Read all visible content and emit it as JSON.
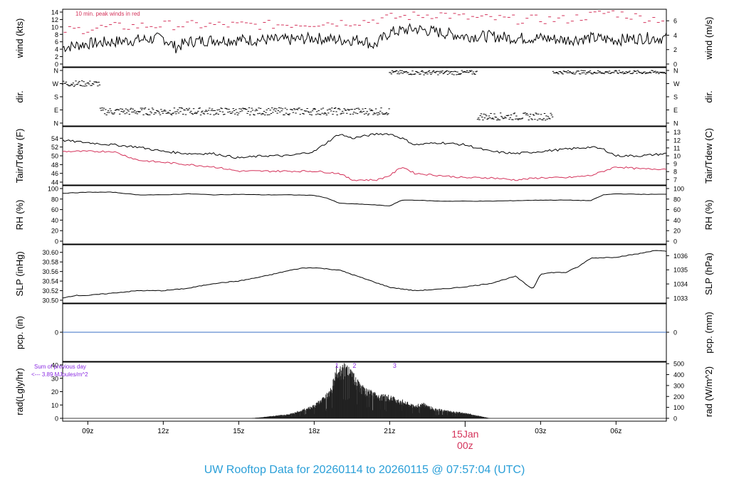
{
  "footer": {
    "title": "UW Rooftop Data for 20260114  to  20260115 @ 07:57:04  (UTC)"
  },
  "colors": {
    "black": "#000000",
    "red": "#d4325a",
    "blue": "#3a6fc4",
    "purple": "#8a2be2",
    "title_blue": "#2a9fd8"
  },
  "x_axis": {
    "ticks": [
      {
        "label": "09z",
        "hour": 9
      },
      {
        "label": "12z",
        "hour": 12
      },
      {
        "label": "15z",
        "hour": 15
      },
      {
        "label": "18z",
        "hour": 18
      },
      {
        "label": "21z",
        "hour": 21
      },
      {
        "label": "03z",
        "hour": 27
      },
      {
        "label": "06z",
        "hour": 30
      }
    ],
    "date_label": "15Jan",
    "date_hour_label": "00z",
    "date_hour": 24,
    "range": [
      8.0,
      32.0
    ]
  },
  "chart_data": [
    {
      "type": "line",
      "panel": "wind",
      "ylabel": "wind (kts)",
      "ylabel_right": "wind (m/s)",
      "ylim": [
        0,
        14
      ],
      "yticks": [
        0,
        2,
        4,
        6,
        8,
        10,
        12,
        14
      ],
      "yticks_right": [
        0,
        2,
        4,
        6
      ],
      "annotation": "10 min. peak winds in red",
      "series": [
        {
          "values_hour": [
            8.0,
            9.0,
            10.0,
            11.0,
            12.0,
            12.5,
            13.0,
            14.0,
            15.0,
            16.0,
            17.0,
            18.0,
            19.0,
            20.0,
            20.2,
            20.4,
            21.0,
            22.0,
            23.0,
            24.0,
            25.0,
            26.0,
            27.0,
            28.0,
            29.0,
            30.0,
            31.0,
            32.0
          ],
          "values": [
            4.5,
            5.5,
            6.0,
            6.5,
            7.0,
            4.5,
            6.0,
            6.5,
            6.5,
            6.5,
            6.5,
            7.0,
            6.5,
            6.5,
            5.5,
            5.0,
            8.5,
            9.5,
            8.5,
            7.5,
            7.5,
            7.0,
            7.0,
            6.5,
            7.0,
            6.5,
            7.0,
            7.0
          ]
        }
      ],
      "peaks": {
        "values_hour": [
          8.0,
          10.0,
          12.0,
          14.0,
          16.0,
          18.0,
          20.0,
          21.0,
          22.0,
          23.0,
          24.0,
          26.0,
          28.0,
          29.8,
          31.0,
          32.0
        ],
        "values": [
          9.0,
          10.0,
          10.5,
          10.5,
          10.5,
          11.0,
          11.5,
          12.5,
          13.0,
          13.5,
          12.5,
          12.0,
          12.0,
          14.0,
          12.5,
          12.0
        ]
      }
    },
    {
      "type": "scatter",
      "panel": "dir",
      "ylabel": "dir.",
      "ylabel_right": "dir.",
      "yticks": [
        "N",
        "W",
        "S",
        "E",
        "N"
      ],
      "bands": [
        {
          "hour_range": [
            8.0,
            9.5
          ],
          "values": [
            250,
            290
          ]
        },
        {
          "hour_range": [
            9.5,
            21.0
          ],
          "values": [
            55,
            105
          ]
        },
        {
          "hour_range": [
            21.0,
            24.5
          ],
          "values": [
            330,
            360
          ]
        },
        {
          "hour_range": [
            24.5,
            27.5
          ],
          "values": [
            20,
            70
          ]
        },
        {
          "hour_range": [
            27.5,
            32.0
          ],
          "values": [
            335,
            360
          ]
        }
      ]
    },
    {
      "type": "line",
      "panel": "temp",
      "ylabel": "Tair/Tdew (F)",
      "ylabel_right": "Tair/Tdew (C)",
      "ylim": [
        44,
        56
      ],
      "yticks": [
        44,
        46,
        48,
        50,
        52,
        54
      ],
      "yticks_right": [
        7,
        8,
        9,
        10,
        11,
        12,
        13
      ],
      "series": [
        {
          "values_hour": [
            8.0,
            9.0,
            10.0,
            11.0,
            12.0,
            13.0,
            14.0,
            15.0,
            16.0,
            17.0,
            18.0,
            18.5,
            19.0,
            19.5,
            20.0,
            20.5,
            21.0,
            21.5,
            22.0,
            23.0,
            24.0,
            25.0,
            26.0,
            27.0,
            28.0,
            29.0,
            29.5,
            30.0,
            31.0,
            32.0
          ],
          "values": [
            53.5,
            53.0,
            52.5,
            52.0,
            51.0,
            50.5,
            50.5,
            49.5,
            50.0,
            50.0,
            51.0,
            53.0,
            55.0,
            54.0,
            54.5,
            55.0,
            55.0,
            54.0,
            52.5,
            53.0,
            52.5,
            51.0,
            50.5,
            51.0,
            51.5,
            52.0,
            51.5,
            50.0,
            50.0,
            50.5
          ]
        },
        {
          "values_hour": [
            8.0,
            9.0,
            10.0,
            10.5,
            11.0,
            12.0,
            13.0,
            14.0,
            15.0,
            16.0,
            17.0,
            18.0,
            19.0,
            19.5,
            20.0,
            20.5,
            21.0,
            21.5,
            22.0,
            23.0,
            24.0,
            25.0,
            26.0,
            27.0,
            28.0,
            29.0,
            30.0,
            31.0,
            32.0
          ],
          "values": [
            51.0,
            51.0,
            51.0,
            50.0,
            49.0,
            48.5,
            48.0,
            47.5,
            46.5,
            46.5,
            46.5,
            46.5,
            46.0,
            44.5,
            44.5,
            44.5,
            45.5,
            47.5,
            46.0,
            45.5,
            45.0,
            45.0,
            44.5,
            45.0,
            45.0,
            45.5,
            47.5,
            47.0,
            47.0
          ]
        }
      ]
    },
    {
      "type": "line",
      "panel": "rh",
      "ylabel": "RH (%)",
      "ylabel_right": "RH (%)",
      "ylim": [
        0,
        100
      ],
      "yticks": [
        0,
        20,
        40,
        60,
        80,
        100
      ],
      "yticks_right": [
        0,
        20,
        40,
        60,
        80,
        100
      ],
      "series": [
        {
          "values_hour": [
            8.0,
            9.0,
            10.0,
            11.0,
            12.0,
            13.0,
            14.0,
            15.0,
            16.0,
            17.0,
            18.0,
            18.5,
            19.0,
            20.0,
            21.0,
            21.5,
            22.0,
            23.0,
            24.0,
            25.0,
            26.0,
            27.0,
            28.0,
            29.0,
            29.5,
            30.0,
            31.0,
            32.0
          ],
          "values": [
            91,
            93,
            93,
            88,
            88,
            90,
            88,
            89,
            88,
            88,
            87,
            82,
            72,
            70,
            67,
            78,
            78,
            76,
            76,
            76,
            77,
            78,
            78,
            77,
            88,
            90,
            89,
            89
          ]
        }
      ]
    },
    {
      "type": "line",
      "panel": "slp",
      "ylabel": "SLP (inHg)",
      "ylabel_right": "SLP (hPa)",
      "ylim": [
        30.5,
        30.61
      ],
      "yticks": [
        30.5,
        30.52,
        30.54,
        30.56,
        30.58,
        30.6
      ],
      "yticks_right": [
        1033,
        1034,
        1035,
        1036
      ],
      "series": [
        {
          "values_hour": [
            8.0,
            8.5,
            9.0,
            10.0,
            11.0,
            12.0,
            13.0,
            14.0,
            15.0,
            16.0,
            17.0,
            17.5,
            18.0,
            19.0,
            20.0,
            21.0,
            22.0,
            23.0,
            24.0,
            25.0,
            26.0,
            26.5,
            26.7,
            27.0,
            27.5,
            28.0,
            28.5,
            29.0,
            30.0,
            31.0,
            31.5,
            32.0
          ],
          "values": [
            30.505,
            30.51,
            30.51,
            30.515,
            30.52,
            30.52,
            30.525,
            30.535,
            30.54,
            30.55,
            30.562,
            30.567,
            30.568,
            30.563,
            30.545,
            30.527,
            30.52,
            30.523,
            30.528,
            30.535,
            30.55,
            30.53,
            30.524,
            30.555,
            30.558,
            30.558,
            30.57,
            30.588,
            30.59,
            30.598,
            30.604,
            30.602
          ]
        }
      ]
    },
    {
      "type": "line",
      "panel": "pcp",
      "ylabel": "pcp. (in)",
      "ylabel_right": "pcp. (mm)",
      "yticks": [
        0
      ],
      "yticks_right": [
        0
      ],
      "series": [
        {
          "values_hour": [
            8.0,
            32.0
          ],
          "values": [
            0,
            0
          ]
        }
      ]
    },
    {
      "type": "area",
      "panel": "rad",
      "ylabel": "rad(Lgly/hr)",
      "ylabel_right": "rad (W/m^2)",
      "ylim": [
        0,
        40
      ],
      "yticks": [
        0,
        10,
        20,
        30,
        40
      ],
      "yticks_right": [
        0,
        100,
        200,
        300,
        400,
        500
      ],
      "annotation_1": "Sum of previous day",
      "annotation_2": "<--- 3.89 MJoules/m^2",
      "markers": [
        "1",
        "2",
        "3"
      ],
      "marker_hours": [
        18.9,
        19.6,
        21.2
      ],
      "series": [
        {
          "values_hour": [
            15.5,
            16.0,
            17.0,
            17.5,
            18.0,
            18.3,
            18.7,
            18.9,
            19.0,
            19.2,
            19.4,
            19.6,
            20.0,
            20.5,
            21.0,
            21.5,
            22.0,
            22.3,
            22.8,
            23.5,
            24.0,
            24.5,
            25.0
          ],
          "values": [
            0,
            1,
            3,
            6,
            10,
            14,
            22,
            40,
            35,
            38,
            38,
            30,
            21,
            18,
            16,
            13,
            9,
            11,
            7,
            5,
            4,
            2,
            0
          ]
        }
      ]
    }
  ]
}
